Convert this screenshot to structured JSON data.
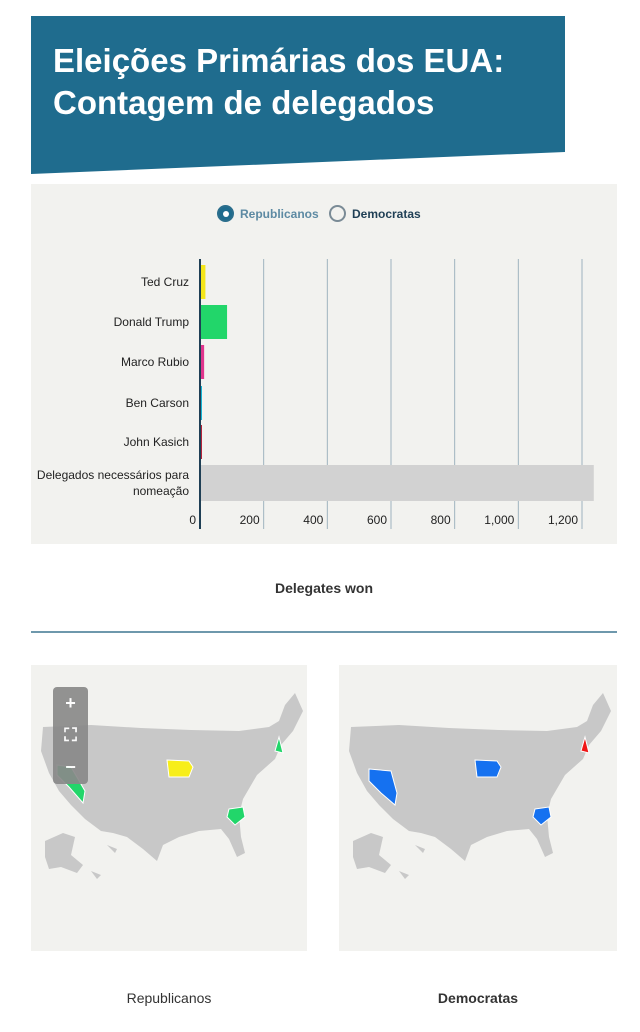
{
  "title": {
    "line1": "Eleições Primárias dos EUA:",
    "line2": "Contagem de delegados"
  },
  "toggle": {
    "republicans": "Republicanos",
    "democrats": "Democratas",
    "selected": "republicans"
  },
  "chart_data": {
    "type": "bar",
    "orientation": "horizontal",
    "categories": [
      "Ted Cruz",
      "Donald Trump",
      "Marco Rubio",
      "Ben Carson",
      "John Kasich"
    ],
    "values": [
      17,
      85,
      13,
      3,
      6
    ],
    "colors": [
      "#f5e61a",
      "#22d66a",
      "#e0358d",
      "#15b6d6",
      "#b5243a"
    ],
    "reference": {
      "label_line1": "Delegados necessários para",
      "label_line2": "nomeação",
      "value": 1237,
      "color": "#d2d2d2"
    },
    "xlabel": "Delegates won",
    "xlim": [
      0,
      1250
    ],
    "xticks": [
      0,
      200,
      400,
      600,
      800,
      1000,
      1200
    ],
    "xtick_labels": [
      "0",
      "200",
      "400",
      "600",
      "800",
      "1,000",
      "1,200"
    ],
    "grid": true
  },
  "maps": {
    "left_caption": "Republicanos",
    "right_caption": "Democratas",
    "zoom_in": "+",
    "zoom_fit": "⛶",
    "zoom_out": "−",
    "land_color": "#c8c8c8",
    "republican_states": [
      {
        "state": "Iowa",
        "color": "#f7ee1a"
      },
      {
        "state": "Nevada",
        "color": "#22d66a"
      },
      {
        "state": "South Carolina",
        "color": "#22d66a"
      },
      {
        "state": "New Hampshire",
        "color": "#22d66a"
      }
    ],
    "democrat_states": [
      {
        "state": "Iowa",
        "color": "#1571f0"
      },
      {
        "state": "Nevada",
        "color": "#1571f0"
      },
      {
        "state": "South Carolina",
        "color": "#1571f0"
      },
      {
        "state": "New Hampshire",
        "color": "#f01515"
      }
    ]
  }
}
